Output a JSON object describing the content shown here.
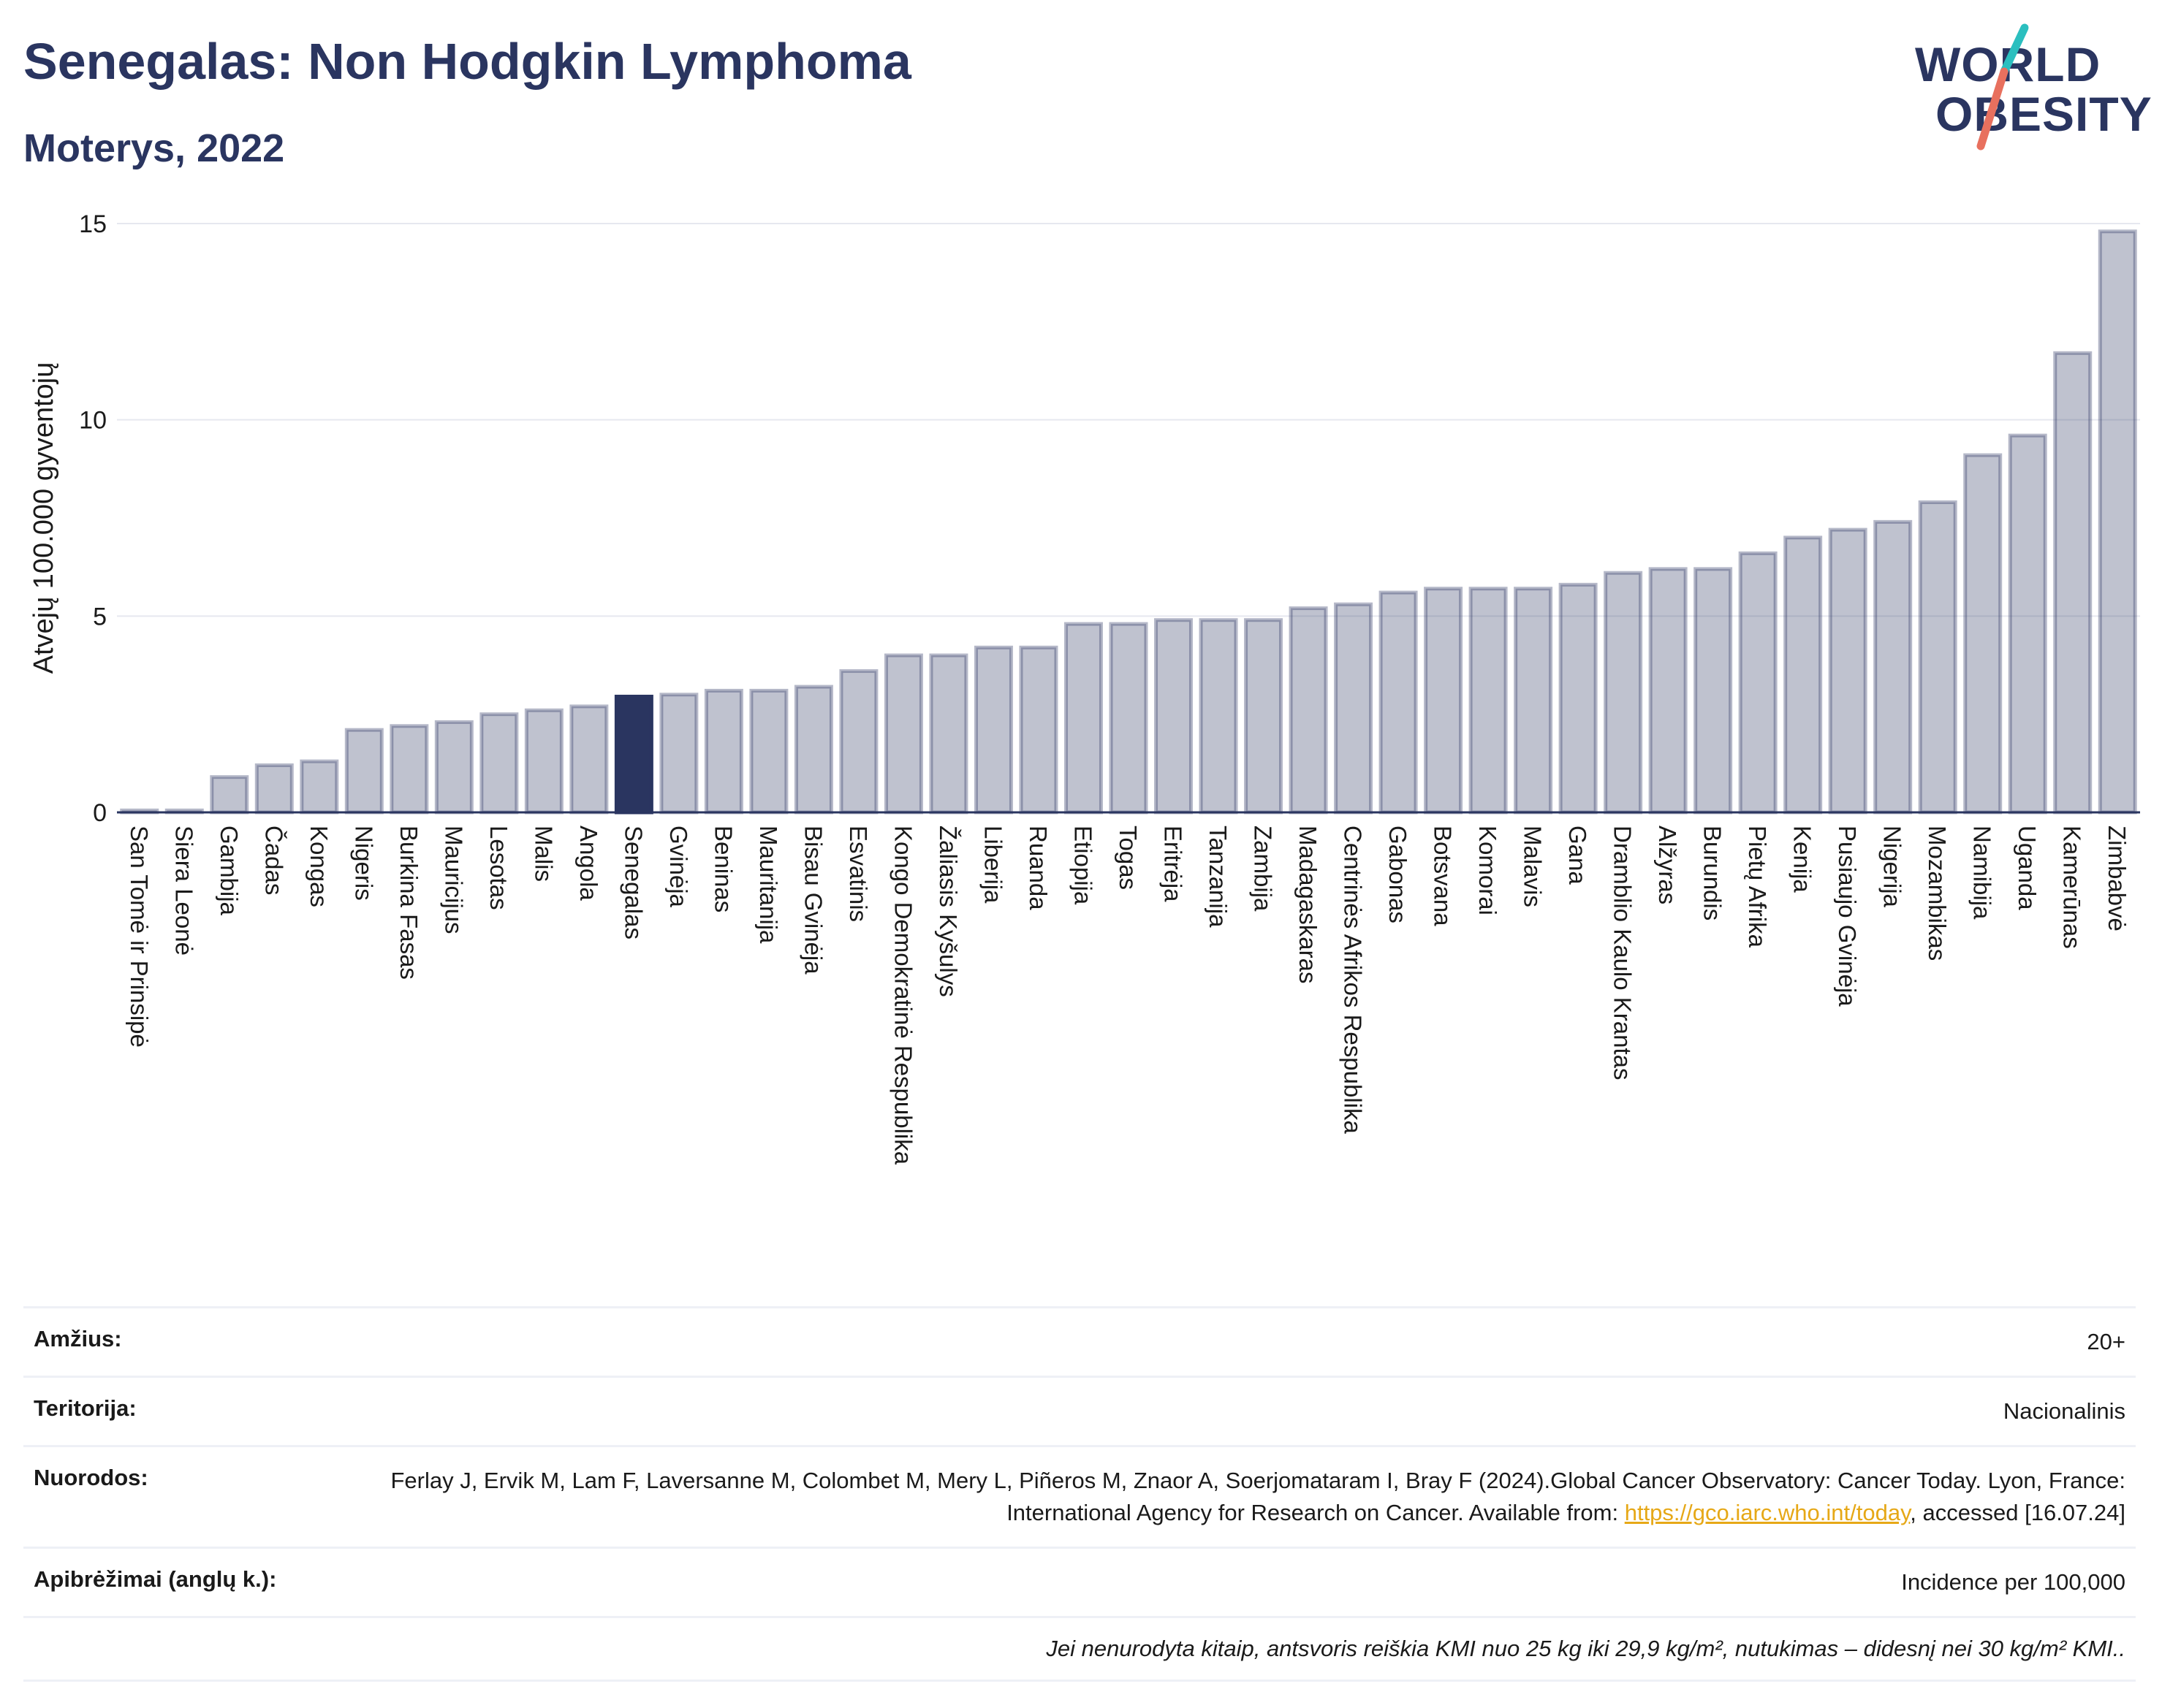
{
  "header": {
    "title": "Senegalas: Non Hodgkin Lymphoma",
    "subtitle": "Moterys, 2022"
  },
  "logo": {
    "line1": "WORLD",
    "line2": "OBESITY",
    "colors": {
      "teal": "#2bbfbf",
      "coral": "#e8705e",
      "navy": "#2a3560"
    }
  },
  "chart_data": {
    "type": "bar",
    "title": "Senegalas: Non Hodgkin Lymphoma",
    "subtitle": "Moterys, 2022",
    "ylabel": "Atvejų 100.000 gyventojų",
    "xlabel": "",
    "ylim": [
      0,
      15
    ],
    "yticks": [
      0,
      5,
      10,
      15
    ],
    "grid": true,
    "highlight": "Senegalas",
    "colors": {
      "bar": "#2a3560",
      "bar_opacity": 0.3,
      "highlight": "#2a3560"
    },
    "categories": [
      "San Tomė ir Prinsipė",
      "Siera Leonė",
      "Gambija",
      "Čadas",
      "Kongas",
      "Nigeris",
      "Burkina Fasas",
      "Mauricijus",
      "Lesotas",
      "Malis",
      "Angola",
      "Senegalas",
      "Gvinėja",
      "Beninas",
      "Mauritanija",
      "Bisau Gvinėja",
      "Esvatinis",
      "Kongo Demokratinė Respublika",
      "Žaliasis Kyšulys",
      "Liberija",
      "Ruanda",
      "Etiopija",
      "Togas",
      "Eritrėja",
      "Tanzanija",
      "Zambija",
      "Madagaskaras",
      "Centrinės Afrikos Respublika",
      "Gabonas",
      "Botsvana",
      "Komorai",
      "Malavis",
      "Gana",
      "Dramblio Kaulo Krantas",
      "Alžyras",
      "Burundis",
      "Pietų Afrika",
      "Kenija",
      "Pusiaujo Gvinėja",
      "Nigerija",
      "Mozambikas",
      "Namibija",
      "Uganda",
      "Kamerūnas",
      "Zimbabvė"
    ],
    "values": [
      0.05,
      0.05,
      0.9,
      1.2,
      1.3,
      2.1,
      2.2,
      2.3,
      2.5,
      2.6,
      2.7,
      2.95,
      3.0,
      3.1,
      3.1,
      3.2,
      3.6,
      4.0,
      4.0,
      4.2,
      4.2,
      4.8,
      4.8,
      4.9,
      4.9,
      4.9,
      5.2,
      5.3,
      5.6,
      5.7,
      5.7,
      5.7,
      5.8,
      6.1,
      6.2,
      6.2,
      6.6,
      7.0,
      7.2,
      7.4,
      7.9,
      9.1,
      9.6,
      11.7,
      14.8
    ]
  },
  "meta": {
    "age_label": "Amžius:",
    "age_value": "20+",
    "territory_label": "Teritorija:",
    "territory_value": "Nacionalinis",
    "refs_label": "Nuorodos:",
    "refs_text_1": "Ferlay J, Ervik M, Lam F, Laversanne M, Colombet M, Mery L, Piñeros M, Znaor A, Soerjomataram I, Bray F (2024).Global Cancer Observatory: Cancer Today. Lyon, France: International Agency for Research on Cancer. Available from: ",
    "refs_link": "https://gco.iarc.who.int/today",
    "refs_text_2": ", accessed [16.07.24]",
    "defs_label": "Apibrėžimai (anglų k.):",
    "defs_value": "Incidence per 100,000",
    "note": "Jei nenurodyta kitaip, antsvoris reiškia KMI nuo 25 kg iki 29,9 kg/m², nutukimas – didesnį nei 30 kg/m² KMI.."
  }
}
